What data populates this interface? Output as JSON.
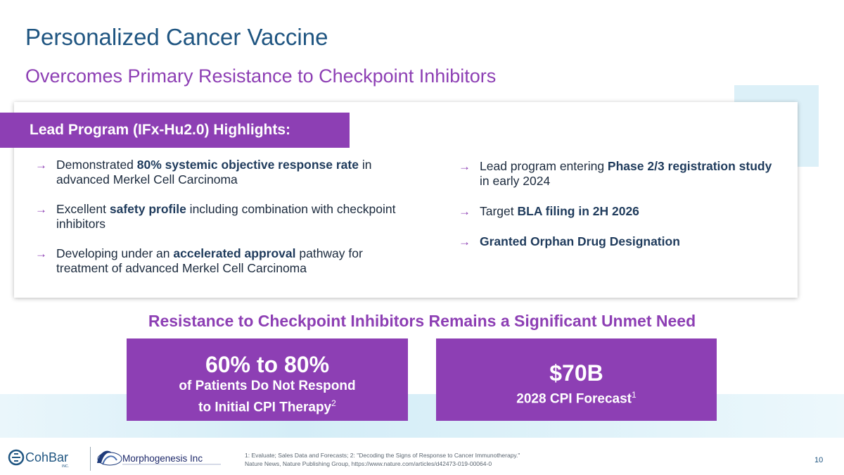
{
  "header": {
    "title": "Personalized Cancer Vaccine",
    "subtitle": "Overcomes Primary Resistance to Checkpoint Inhibitors"
  },
  "highlights": {
    "tab_label": "Lead Program (IFx-Hu2.0) Highlights:",
    "arrow_glyph": "→",
    "left": [
      {
        "pre": "Demonstrated ",
        "bold": "80% systemic objective response rate",
        "post": " in advanced Merkel Cell Carcinoma"
      },
      {
        "pre": "Excellent ",
        "bold": "safety profile",
        "post": " including combination with checkpoint inhibitors"
      },
      {
        "pre": "Developing under an ",
        "bold": "accelerated approval",
        "post": " pathway for treatment of advanced Merkel Cell Carcinoma"
      }
    ],
    "right": [
      {
        "pre": "Lead program entering ",
        "bold": "Phase 2/3 registration study",
        "post": " in early 2024"
      },
      {
        "pre": "Target ",
        "bold": "BLA filing in 2H 2026",
        "post": ""
      },
      {
        "pre": "",
        "bold": "Granted Orphan Drug Designation",
        "post": ""
      }
    ]
  },
  "unmet_need": {
    "heading": "Resistance to Checkpoint Inhibitors Remains a Significant Unmet Need",
    "stat1": {
      "big": "60% to 80%",
      "line1": "of Patients Do Not Respond",
      "line2": "to Initial CPI Therapy",
      "sup": "2"
    },
    "stat2": {
      "big": "$70B",
      "line1": "2028 CPI Forecast",
      "sup": "1"
    }
  },
  "footer": {
    "cohbar_text": "CohBar",
    "cohbar_inc": "INC.",
    "morpho_text": "Morphogenesis Inc",
    "footnote_line1": "1: Evaluate; Sales Data and Forecasts; 2: \"Decoding the Signs of Response to Cancer Immunotherapy.\"",
    "footnote_line2": "Nature News, Nature Publishing Group, https://www.nature.com/articles/d42473-019-00064-0",
    "page_number": "10"
  },
  "colors": {
    "navy": "#1f5581",
    "purple": "#8d3fb4",
    "light_blue": "#dcf0f8"
  }
}
